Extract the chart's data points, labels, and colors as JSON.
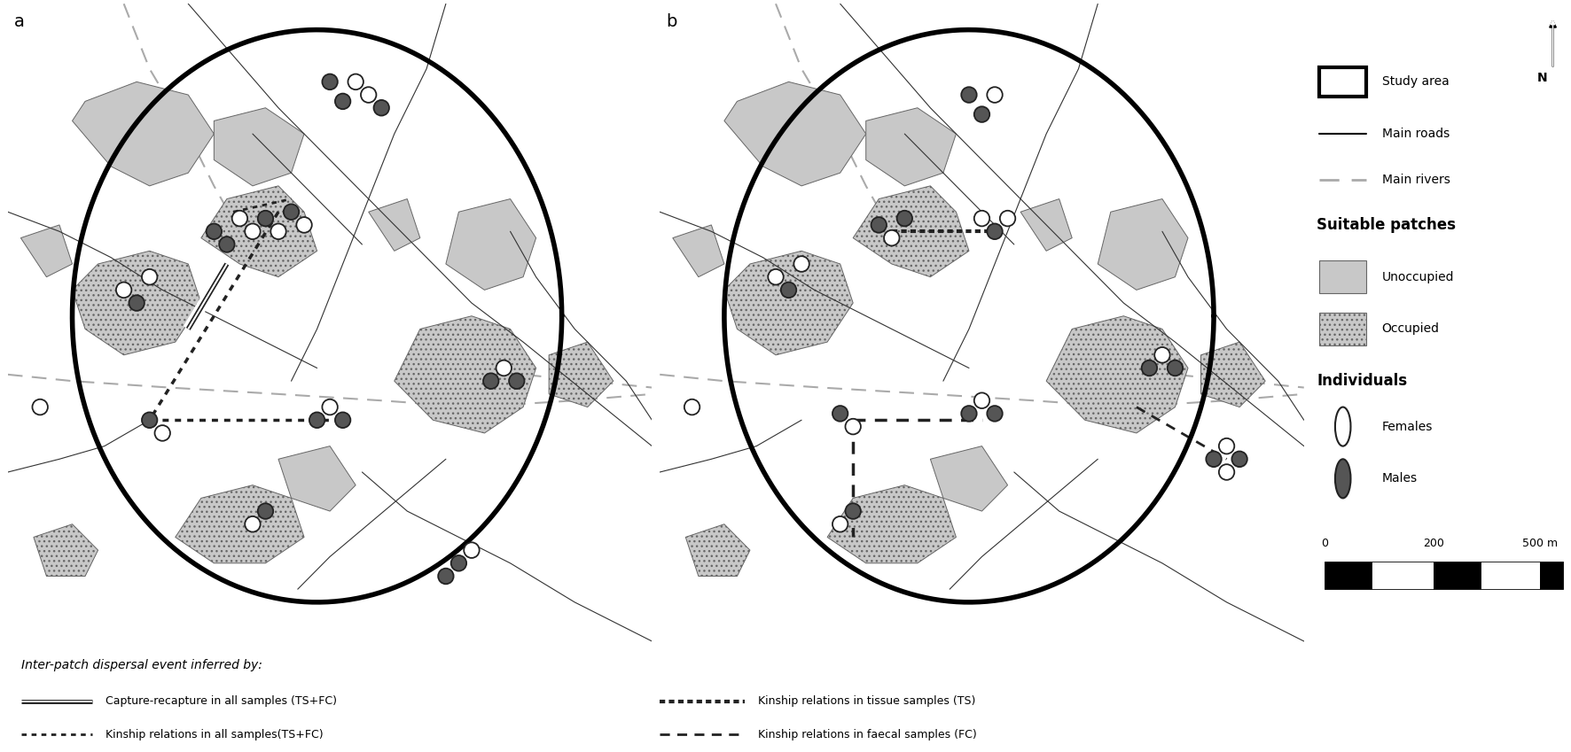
{
  "fig_width": 17.72,
  "fig_height": 8.49,
  "dpi": 100,
  "bg_color": "#ffffff",
  "map_bg": "#ffffff",
  "patch_gray": "#c8c8c8",
  "road_color": "#333333",
  "river_color": "#aaaaaa",
  "panel_a_label": "a",
  "panel_b_label": "b",
  "legend_items": {
    "study_area": "Study area",
    "main_roads": "Main roads",
    "main_rivers": "Main rivers",
    "suitable_patches": "Suitable patches",
    "unoccupied": "Unoccupied",
    "occupied": "Occupied",
    "individuals": "Individuals",
    "females": "Females",
    "males": "Males"
  },
  "bottom_legend": {
    "title": "Inter-patch dispersal event inferred by:",
    "item1": "Capture-recapture in all samples (TS+FC)",
    "item2": "Kinship relations in all samples(TS+FC)",
    "item3": "Kinship relations in tissue samples (TS)",
    "item4": "Kinship relations in faecal samples (FC)"
  }
}
